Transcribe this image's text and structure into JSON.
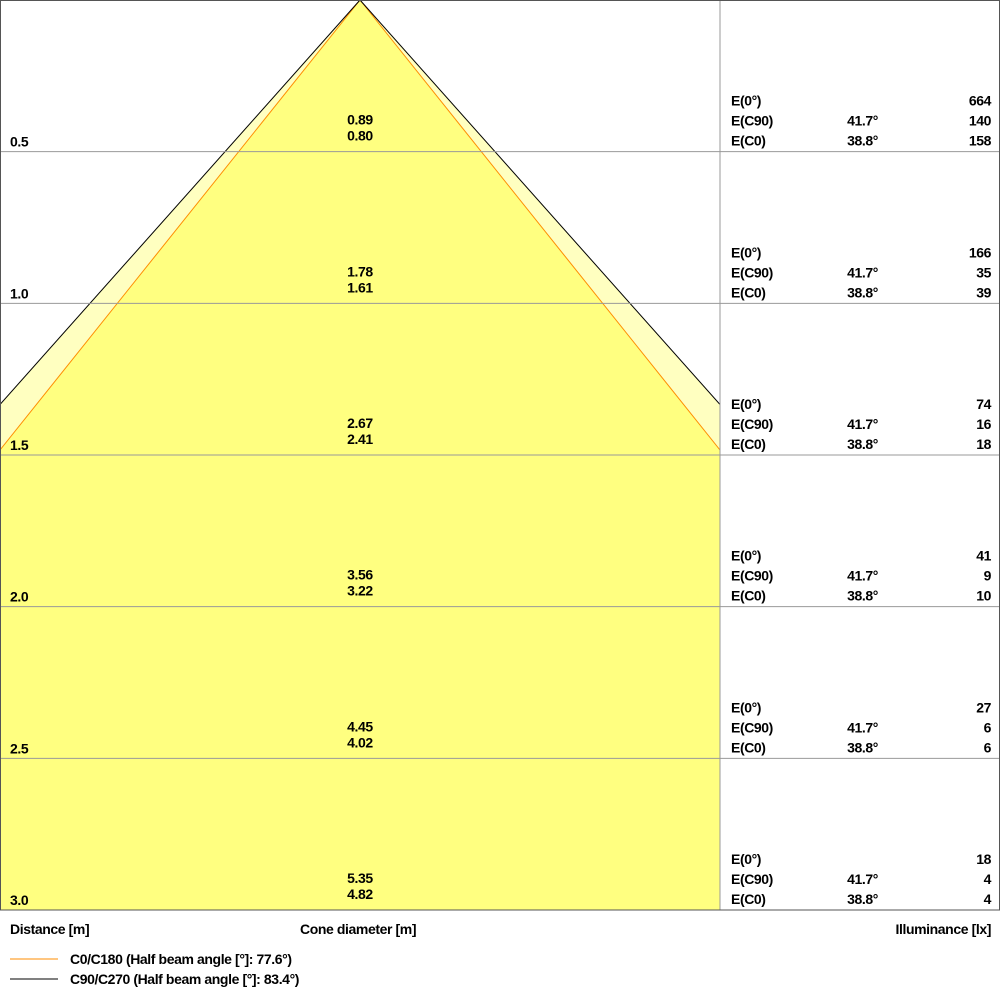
{
  "chart_data": {
    "type": "cone-diagram",
    "distance_label": "Distance [m]",
    "cone_label": "Cone diameter [m]",
    "illuminance_label": "Illuminance [lx]",
    "row_labels": [
      "E(0°)",
      "E(C90)",
      "E(C0)"
    ],
    "c90_angle": "41.7°",
    "c0_angle": "38.8°",
    "rows": [
      {
        "distance": "0.5",
        "d_c90": "0.89",
        "d_c0": "0.80",
        "e0": "664",
        "ec90": "140",
        "ec0": "158"
      },
      {
        "distance": "1.0",
        "d_c90": "1.78",
        "d_c0": "1.61",
        "e0": "166",
        "ec90": "35",
        "ec0": "39"
      },
      {
        "distance": "1.5",
        "d_c90": "2.67",
        "d_c0": "2.41",
        "e0": "74",
        "ec90": "16",
        "ec0": "18"
      },
      {
        "distance": "2.0",
        "d_c90": "3.56",
        "d_c0": "3.22",
        "e0": "41",
        "ec90": "9",
        "ec0": "10"
      },
      {
        "distance": "2.5",
        "d_c90": "4.45",
        "d_c0": "4.02",
        "e0": "27",
        "ec90": "6",
        "ec0": "6"
      },
      {
        "distance": "3.0",
        "d_c90": "5.35",
        "d_c0": "4.82",
        "e0": "18",
        "ec90": "4",
        "ec0": "4"
      }
    ],
    "legend": [
      {
        "name": "C0/C180 (Half beam angle [°]: 77.6°)",
        "color": "#ff8c00",
        "half_beam_angle": 77.6
      },
      {
        "name": "C90/C270 (Half beam angle [°]: 83.4°)",
        "color": "#000000",
        "half_beam_angle": 83.4
      }
    ],
    "colors": {
      "inner_fill": "#ffff80",
      "outer_fill": "#ffffc0",
      "grid": "#999999"
    }
  }
}
